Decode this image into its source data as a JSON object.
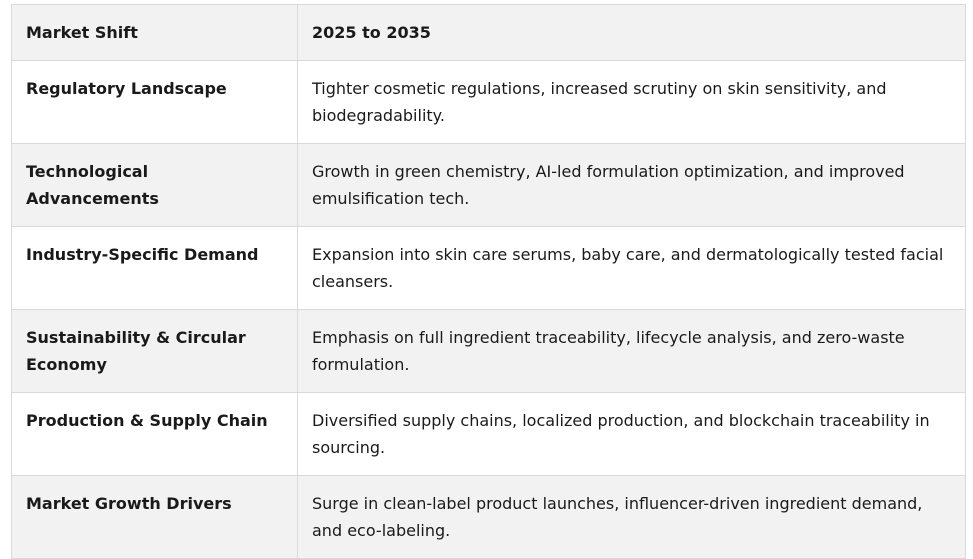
{
  "table": {
    "headers": [
      "Market Shift",
      "2025 to 2035"
    ],
    "rows": [
      {
        "shift": "Regulatory Landscape",
        "detail": "Tighter cosmetic regulations, increased scrutiny on skin sensitivity, and biodegradability."
      },
      {
        "shift": "Technological Advancements",
        "detail": "Growth in green chemistry, AI-led formulation optimization, and improved emulsification tech."
      },
      {
        "shift": "Industry-Specific Demand",
        "detail": "Expansion into skin care serums, baby care, and dermatologically tested facial cleansers."
      },
      {
        "shift": "Sustainability & Circular Economy",
        "detail": "Emphasis on full ingredient traceability, lifecycle analysis, and zero-waste formulation."
      },
      {
        "shift": "Production & Supply Chain",
        "detail": "Diversified supply chains, localized production, and blockchain traceability in sourcing."
      },
      {
        "shift": "Market Growth Drivers",
        "detail": "Surge in clean-label product launches, influencer-driven ingredient demand, and eco-labeling."
      }
    ]
  }
}
